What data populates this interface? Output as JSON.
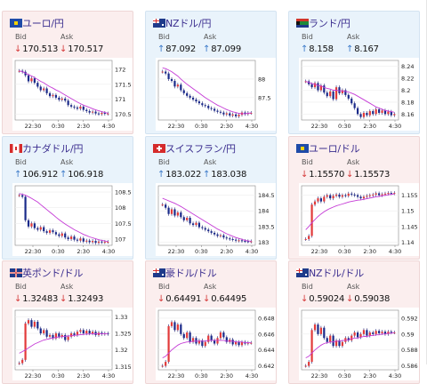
{
  "labels": {
    "bid": "Bid",
    "ask": "Ask"
  },
  "cards": [
    {
      "name": "usdjpy-eur",
      "pair": "ユーロ/円",
      "flag": "eu",
      "trend": "down",
      "bid": "170.513",
      "ask": "170.517",
      "bid_dir": "down",
      "ask_dir": "down",
      "chart_data": {
        "type": "candlestick",
        "x_ticks": [
          "22:30",
          "0:30",
          "2:30",
          "4:30"
        ],
        "y_ticks": [
          "172",
          "171.5",
          "171",
          "170.5"
        ],
        "ylim": [
          170.3,
          172.3
        ],
        "series": [
          {
            "name": "price",
            "values": [
              171.95,
              171.92,
              171.8,
              171.6,
              171.7,
              171.55,
              171.42,
              171.3,
              171.36,
              171.2,
              171.1,
              171.14,
              171.05,
              170.98,
              171.02,
              170.95,
              170.8,
              170.75,
              170.72,
              170.68,
              170.75,
              170.64,
              170.6,
              170.55,
              170.58,
              170.52,
              170.5,
              170.54,
              170.51,
              170.52
            ]
          },
          {
            "name": "ma",
            "values": [
              171.95,
              171.92,
              171.88,
              171.82,
              171.78,
              171.72,
              171.66,
              171.6,
              171.55,
              171.48,
              171.42,
              171.37,
              171.31,
              171.26,
              171.2,
              171.14,
              171.08,
              171.02,
              170.96,
              170.9,
              170.85,
              170.8,
              170.76,
              170.72,
              170.68,
              170.64,
              170.61,
              170.58,
              170.55,
              170.53
            ]
          }
        ]
      }
    },
    {
      "name": "nzdjpy",
      "pair": "NZドル/円",
      "flag": "nz",
      "trend": "up",
      "bid": "87.092",
      "ask": "87.099",
      "bid_dir": "up",
      "ask_dir": "up",
      "chart_data": {
        "type": "candlestick",
        "x_ticks": [
          "22:30",
          "0:30",
          "2:30",
          "4:30"
        ],
        "y_ticks": [
          "88",
          "87.5"
        ],
        "ylim": [
          86.9,
          88.5
        ],
        "series": [
          {
            "name": "price",
            "values": [
              88.2,
              88.15,
              88.0,
              87.95,
              87.8,
              87.85,
              87.7,
              87.62,
              87.55,
              87.5,
              87.45,
              87.4,
              87.35,
              87.3,
              87.28,
              87.22,
              87.2,
              87.15,
              87.12,
              87.1,
              87.05,
              87.08,
              87.02,
              87.05,
              87.0,
              87.04,
              87.1,
              87.06,
              87.09,
              87.09
            ]
          },
          {
            "name": "ma",
            "values": [
              88.3,
              88.28,
              88.24,
              88.2,
              88.14,
              88.08,
              88.0,
              87.93,
              87.86,
              87.8,
              87.74,
              87.68,
              87.62,
              87.56,
              87.5,
              87.45,
              87.4,
              87.35,
              87.3,
              87.26,
              87.22,
              87.18,
              87.15,
              87.12,
              87.1,
              87.08,
              87.07,
              87.07,
              87.08,
              87.09
            ]
          }
        ]
      }
    },
    {
      "name": "zarjpy",
      "pair": "ランド/円",
      "flag": "za",
      "trend": "up",
      "bid": "8.158",
      "ask": "8.167",
      "bid_dir": "up",
      "ask_dir": "up",
      "chart_data": {
        "type": "candlestick",
        "x_ticks": [
          "22:30",
          "0:30",
          "2:30",
          "4:30"
        ],
        "y_ticks": [
          "8.24",
          "8.22",
          "8.2",
          "8.18",
          "8.16"
        ],
        "ylim": [
          8.15,
          8.25
        ],
        "series": [
          {
            "name": "price",
            "values": [
              8.215,
              8.21,
              8.205,
              8.212,
              8.2,
              8.208,
              8.196,
              8.19,
              8.198,
              8.185,
              8.205,
              8.195,
              8.2,
              8.192,
              8.186,
              8.178,
              8.17,
              8.16,
              8.155,
              8.162,
              8.158,
              8.165,
              8.16,
              8.168,
              8.162,
              8.166,
              8.16,
              8.164,
              8.158,
              8.16
            ]
          },
          {
            "name": "ma",
            "values": [
              8.215,
              8.213,
              8.211,
              8.21,
              8.208,
              8.207,
              8.205,
              8.203,
              8.202,
              8.2,
              8.2,
              8.199,
              8.199,
              8.198,
              8.197,
              8.195,
              8.193,
              8.19,
              8.187,
              8.184,
              8.181,
              8.178,
              8.175,
              8.172,
              8.17,
              8.168,
              8.166,
              8.165,
              8.164,
              8.163
            ]
          }
        ]
      }
    },
    {
      "name": "cadjpy",
      "pair": "カナダドル/円",
      "flag": "ca",
      "trend": "up",
      "bid": "106.912",
      "ask": "106.918",
      "bid_dir": "up",
      "ask_dir": "up",
      "chart_data": {
        "type": "candlestick",
        "x_ticks": [
          "22:30",
          "0:30",
          "2:30",
          "4:30"
        ],
        "y_ticks": [
          "108.5",
          "108",
          "107.5",
          "107"
        ],
        "ylim": [
          106.8,
          108.7
        ],
        "series": [
          {
            "name": "price",
            "values": [
              108.4,
              108.35,
              107.6,
              107.4,
              107.5,
              107.35,
              107.3,
              107.38,
              107.25,
              107.2,
              107.28,
              107.22,
              107.15,
              107.1,
              107.18,
              107.05,
              107.0,
              107.08,
              106.98,
              106.95,
              107.02,
              106.92,
              106.95,
              106.9,
              106.94,
              106.88,
              106.92,
              106.9,
              106.91,
              106.91
            ]
          },
          {
            "name": "ma",
            "values": [
              108.45,
              108.43,
              108.4,
              108.35,
              108.3,
              108.24,
              108.18,
              108.1,
              108.02,
              107.94,
              107.86,
              107.78,
              107.7,
              107.62,
              107.55,
              107.48,
              107.42,
              107.36,
              107.3,
              107.25,
              107.2,
              107.15,
              107.11,
              107.07,
              107.04,
              107.01,
              106.98,
              106.96,
              106.94,
              106.92
            ]
          }
        ]
      }
    },
    {
      "name": "chfjpy",
      "pair": "スイスフラン/円",
      "flag": "ch",
      "trend": "up",
      "bid": "183.022",
      "ask": "183.038",
      "bid_dir": "up",
      "ask_dir": "up",
      "chart_data": {
        "type": "candlestick",
        "x_ticks": [
          "22:30",
          "0:30",
          "2:30",
          "4:30"
        ],
        "y_ticks": [
          "184.5",
          "184",
          "183.5",
          "183"
        ],
        "ylim": [
          182.9,
          184.8
        ],
        "series": [
          {
            "name": "price",
            "values": [
              184.2,
              184.1,
              183.9,
              184.05,
              183.85,
              183.95,
              183.8,
              183.7,
              183.78,
              183.6,
              183.55,
              183.62,
              183.48,
              183.45,
              183.4,
              183.35,
              183.3,
              183.25,
              183.2,
              183.22,
              183.15,
              183.12,
              183.1,
              183.08,
              183.05,
              183.06,
              183.04,
              183.03,
              183.02,
              183.03
            ]
          },
          {
            "name": "ma",
            "values": [
              184.4,
              184.36,
              184.32,
              184.28,
              184.24,
              184.19,
              184.14,
              184.08,
              184.02,
              183.96,
              183.9,
              183.84,
              183.78,
              183.72,
              183.66,
              183.6,
              183.54,
              183.48,
              183.42,
              183.37,
              183.32,
              183.27,
              183.23,
              183.19,
              183.15,
              183.12,
              183.09,
              183.06,
              183.04,
              183.03
            ]
          }
        ]
      }
    },
    {
      "name": "eurusd",
      "pair": "ユーロ/ドル",
      "flag": "eu",
      "trend": "down",
      "bid": "1.15570",
      "ask": "1.15573",
      "bid_dir": "down",
      "ask_dir": "down",
      "chart_data": {
        "type": "candlestick",
        "x_ticks": [
          "22:30",
          "0:30",
          "2:30",
          "4:30"
        ],
        "y_ticks": [
          "1.155",
          "1.15",
          "1.145",
          "1.14"
        ],
        "ylim": [
          1.139,
          1.158
        ],
        "series": [
          {
            "name": "price",
            "values": [
              1.141,
              1.142,
              1.152,
              1.153,
              1.154,
              1.153,
              1.1545,
              1.155,
              1.154,
              1.1548,
              1.1552,
              1.1545,
              1.155,
              1.1548,
              1.1555,
              1.1552,
              1.155,
              1.1545,
              1.154,
              1.1545,
              1.1548,
              1.155,
              1.1552,
              1.1556,
              1.155,
              1.1553,
              1.1555,
              1.1557,
              1.1556,
              1.1557
            ]
          },
          {
            "name": "ma",
            "values": [
              1.144,
              1.145,
              1.1462,
              1.1472,
              1.1482,
              1.149,
              1.1497,
              1.1503,
              1.1508,
              1.1512,
              1.1516,
              1.1519,
              1.1522,
              1.1525,
              1.1528,
              1.153,
              1.1532,
              1.1534,
              1.1535,
              1.1537,
              1.1539,
              1.1541,
              1.1543,
              1.1545,
              1.1546,
              1.1548,
              1.155,
              1.1551,
              1.1553,
              1.1554
            ]
          }
        ]
      }
    },
    {
      "name": "gbpusd",
      "pair": "英ポンド/ドル",
      "flag": "gb",
      "trend": "down",
      "bid": "1.32483",
      "ask": "1.32493",
      "bid_dir": "down",
      "ask_dir": "down",
      "chart_data": {
        "type": "candlestick",
        "x_ticks": [
          "22:30",
          "0:30",
          "2:30",
          "4:30"
        ],
        "y_ticks": [
          "1.33",
          "1.325",
          "1.32",
          "1.315"
        ],
        "ylim": [
          1.314,
          1.332
        ],
        "series": [
          {
            "name": "price",
            "values": [
              1.316,
              1.317,
              1.328,
              1.329,
              1.327,
              1.3285,
              1.3265,
              1.325,
              1.326,
              1.324,
              1.3245,
              1.3235,
              1.325,
              1.324,
              1.3245,
              1.323,
              1.324,
              1.325,
              1.3245,
              1.3255,
              1.326,
              1.325,
              1.3258,
              1.325,
              1.3255,
              1.3245,
              1.3252,
              1.3248,
              1.325,
              1.3248
            ]
          },
          {
            "name": "ma",
            "values": [
              1.319,
              1.3195,
              1.32,
              1.3206,
              1.3212,
              1.3218,
              1.3222,
              1.3226,
              1.323,
              1.3232,
              1.3234,
              1.3236,
              1.3238,
              1.3239,
              1.324,
              1.3241,
              1.3242,
              1.3243,
              1.3244,
              1.3245,
              1.3246,
              1.3247,
              1.3248,
              1.3248,
              1.3249,
              1.3249,
              1.3249,
              1.3249,
              1.3249,
              1.3249
            ]
          }
        ]
      }
    },
    {
      "name": "audusd",
      "pair": "豪ドル/ドル",
      "flag": "au",
      "trend": "down",
      "bid": "0.64491",
      "ask": "0.64495",
      "bid_dir": "down",
      "ask_dir": "down",
      "chart_data": {
        "type": "candlestick",
        "x_ticks": [
          "22:30",
          "0:30",
          "2:30",
          "4:30"
        ],
        "y_ticks": [
          "0.648",
          "0.646",
          "0.644",
          "0.642"
        ],
        "ylim": [
          0.6415,
          0.649
        ],
        "series": [
          {
            "name": "price",
            "values": [
              0.642,
              0.6425,
              0.647,
              0.6475,
              0.6465,
              0.6472,
              0.646,
              0.6455,
              0.6462,
              0.645,
              0.6455,
              0.6448,
              0.6452,
              0.6445,
              0.645,
              0.6458,
              0.6452,
              0.6448,
              0.6455,
              0.6462,
              0.6456,
              0.645,
              0.6453,
              0.6447,
              0.645,
              0.6446,
              0.645,
              0.6448,
              0.6449,
              0.6449
            ]
          },
          {
            "name": "ma",
            "values": [
              0.643,
              0.6432,
              0.6436,
              0.644,
              0.6443,
              0.6446,
              0.6448,
              0.6449,
              0.645,
              0.645,
              0.6451,
              0.6451,
              0.6451,
              0.6451,
              0.6451,
              0.6452,
              0.6452,
              0.6452,
              0.6452,
              0.6452,
              0.6452,
              0.6451,
              0.6451,
              0.6451,
              0.645,
              0.645,
              0.645,
              0.6449,
              0.6449,
              0.6449
            ]
          }
        ]
      }
    },
    {
      "name": "nzdusd",
      "pair": "NZドル/ドル",
      "flag": "nz",
      "trend": "down",
      "bid": "0.59024",
      "ask": "0.59038",
      "bid_dir": "down",
      "ask_dir": "down",
      "chart_data": {
        "type": "candlestick",
        "x_ticks": [
          "22:30",
          "0:30",
          "2:30",
          "4:30"
        ],
        "y_ticks": [
          "0.592",
          "0.59",
          "0.588",
          "0.586"
        ],
        "ylim": [
          0.5855,
          0.593
        ],
        "series": [
          {
            "name": "price",
            "values": [
              0.586,
              0.5865,
              0.5905,
              0.5912,
              0.59,
              0.5908,
              0.5895,
              0.589,
              0.5898,
              0.5885,
              0.5892,
              0.5885,
              0.589,
              0.5895,
              0.5892,
              0.5898,
              0.5902,
              0.5896,
              0.59,
              0.5905,
              0.5898,
              0.5902,
              0.59,
              0.5904,
              0.5901,
              0.5903,
              0.59,
              0.5903,
              0.5902,
              0.5902
            ]
          },
          {
            "name": "ma",
            "values": [
              0.587,
              0.5872,
              0.5876,
              0.588,
              0.5883,
              0.5886,
              0.5888,
              0.5889,
              0.589,
              0.589,
              0.5891,
              0.5891,
              0.5892,
              0.5892,
              0.5893,
              0.5894,
              0.5895,
              0.5895,
              0.5896,
              0.5897,
              0.5897,
              0.5898,
              0.5898,
              0.5899,
              0.5899,
              0.59,
              0.59,
              0.5901,
              0.5901,
              0.5902
            ]
          }
        ]
      }
    }
  ]
}
